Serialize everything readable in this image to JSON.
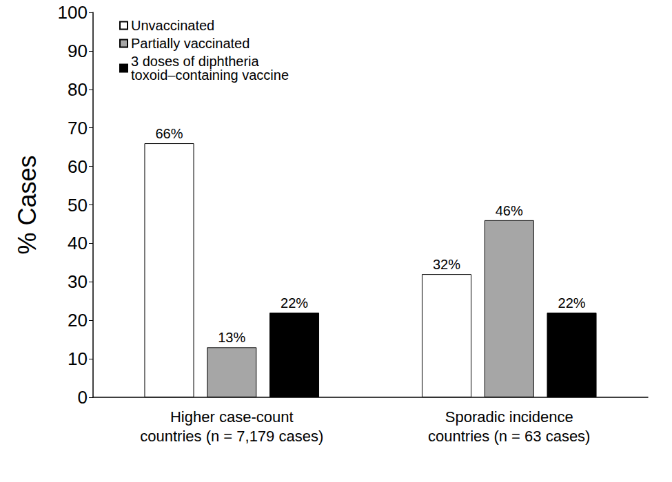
{
  "chart_data": {
    "type": "bar",
    "y_label": "% Cases",
    "categories": [
      "Higher case-count\ncountries (n = 7,179 cases)",
      "Sporadic incidence\ncountries (n = 63 cases)"
    ],
    "series": [
      {
        "name": "Unvaccinated",
        "color": "#ffffff",
        "values": [
          66,
          32
        ],
        "value_labels": [
          "66%",
          "32%"
        ]
      },
      {
        "name": "Partially vaccinated",
        "color": "#a6a6a6",
        "values": [
          13,
          46
        ],
        "value_labels": [
          "13%",
          "46%"
        ]
      },
      {
        "name": "3 doses of diphtheria\ntoxoid–containing vaccine",
        "color": "#000000",
        "values": [
          22,
          22
        ],
        "value_labels": [
          "22%",
          "22%"
        ]
      }
    ],
    "ylim": [
      0,
      100
    ],
    "yticks": [
      0,
      10,
      20,
      30,
      40,
      50,
      60,
      70,
      80,
      90,
      100
    ],
    "grid": false,
    "legend": "top-left",
    "data_labels": true
  }
}
